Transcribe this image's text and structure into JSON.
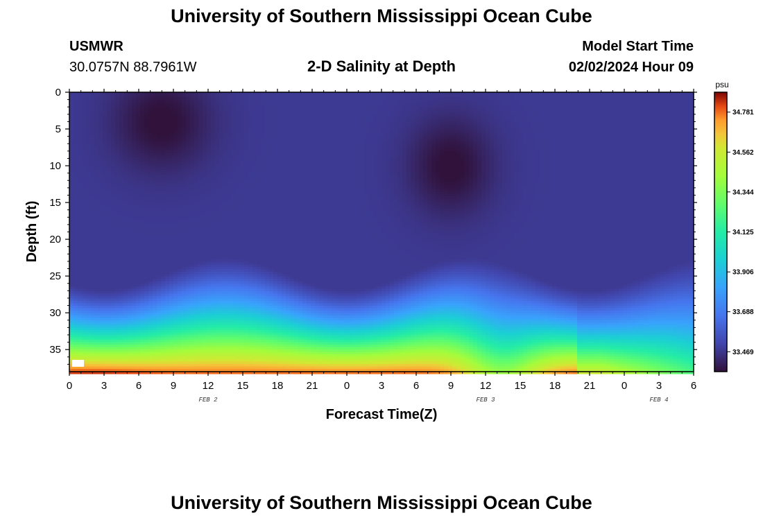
{
  "header": {
    "title": "University of Southern Mississippi Ocean Cube",
    "station_id": "USMWR",
    "coordinates": "30.0757N  88.7961W",
    "chart_title": "2-D Salinity at Depth",
    "model_start_label": "Model Start Time",
    "model_start_value": "02/02/2024 Hour 09"
  },
  "footer": {
    "title": "University of Southern Mississippi Ocean Cube"
  },
  "chart_data": {
    "type": "heatmap",
    "title": "2-D Salinity at Depth",
    "xlabel": "Forecast Time(Z)",
    "ylabel": "Depth (ft)",
    "x_range_hours": [
      0,
      54
    ],
    "y_range_ft": [
      0,
      38
    ],
    "y_inverted": true,
    "x_ticks": [
      "0",
      "3",
      "6",
      "9",
      "12",
      "15",
      "18",
      "21",
      "0",
      "3",
      "6",
      "9",
      "12",
      "15",
      "18",
      "21",
      "0",
      "3",
      "6"
    ],
    "y_ticks": [
      0,
      5,
      10,
      15,
      20,
      25,
      30,
      35
    ],
    "date_labels": [
      {
        "text": "FEB 2",
        "hour": 12
      },
      {
        "text": "FEB 3",
        "hour": 36
      },
      {
        "text": "FEB 4",
        "hour": 51
      }
    ],
    "colorbar": {
      "unit": "psu",
      "min": 33.36,
      "max": 34.89,
      "ticks": [
        34.781,
        34.562,
        34.344,
        34.125,
        33.906,
        33.688,
        33.469
      ]
    },
    "features": {
      "surface_high_salinity_cores": [
        {
          "center_hour": 8,
          "center_depth_ft": 4,
          "value": 33.36
        },
        {
          "center_hour": 33,
          "center_depth_ft": 10,
          "value": 33.37
        }
      ],
      "bottom_high_salinity_cores": [
        {
          "center_hour": 2,
          "depth_ft": 37,
          "value": 34.89
        },
        {
          "center_hour": 24,
          "depth_ft": 37,
          "value": 34.8
        },
        {
          "center_hour": 44,
          "depth_ft": 37,
          "value": 34.62
        }
      ]
    }
  }
}
